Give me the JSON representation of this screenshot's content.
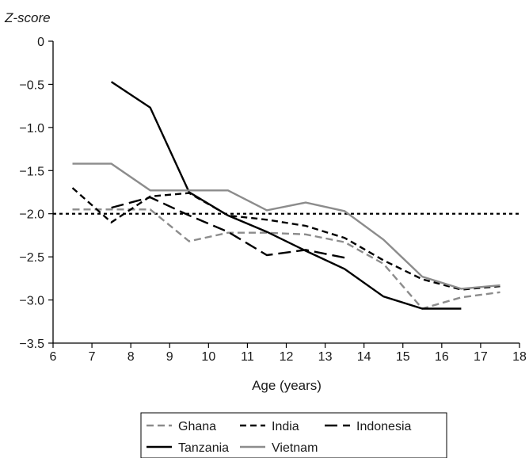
{
  "chart_data": {
    "type": "line",
    "ylabel": "Z-score",
    "xlabel": "Age (years)",
    "xlim": [
      6,
      18
    ],
    "ylim": [
      -3.5,
      0
    ],
    "xticks": [
      "6",
      "7",
      "8",
      "9",
      "10",
      "11",
      "12",
      "13",
      "14",
      "15",
      "16",
      "17",
      "18"
    ],
    "yticks": [
      "0",
      "−0.5",
      "−1.0",
      "−1.5",
      "−2.0",
      "−2.5",
      "−3.0",
      "−3.5"
    ],
    "reference_line": -2.0,
    "grid": false,
    "legend_position": "bottom",
    "series": [
      {
        "name": "Ghana",
        "color": "#8c8c8c",
        "dash": "medium-dash",
        "points": [
          [
            6.5,
            -1.95
          ],
          [
            7.5,
            -1.95
          ],
          [
            8.5,
            -1.95
          ],
          [
            9.5,
            -2.32
          ],
          [
            10.5,
            -2.22
          ],
          [
            11.5,
            -2.22
          ],
          [
            12.5,
            -2.24
          ],
          [
            13.5,
            -2.33
          ],
          [
            14.5,
            -2.58
          ],
          [
            15.5,
            -3.1
          ],
          [
            16.5,
            -2.97
          ],
          [
            17.5,
            -2.91
          ]
        ]
      },
      {
        "name": "India",
        "color": "#000000",
        "dash": "short-dash",
        "points": [
          [
            6.5,
            -1.7
          ],
          [
            7.5,
            -2.1
          ],
          [
            8.5,
            -1.8
          ],
          [
            9.5,
            -1.76
          ],
          [
            10.5,
            -2.02
          ],
          [
            11.5,
            -2.07
          ],
          [
            12.5,
            -2.14
          ],
          [
            13.5,
            -2.28
          ],
          [
            14.5,
            -2.54
          ],
          [
            15.5,
            -2.76
          ],
          [
            16.5,
            -2.88
          ],
          [
            17.5,
            -2.84
          ]
        ]
      },
      {
        "name": "Indonesia",
        "color": "#000000",
        "dash": "long-dash",
        "points": [
          [
            7.5,
            -1.93
          ],
          [
            8.5,
            -1.81
          ],
          [
            9.5,
            -2.02
          ],
          [
            10.5,
            -2.21
          ],
          [
            11.5,
            -2.48
          ],
          [
            12.5,
            -2.42
          ],
          [
            13.5,
            -2.51
          ]
        ]
      },
      {
        "name": "Tanzania",
        "color": "#000000",
        "dash": "solid",
        "points": [
          [
            7.5,
            -0.47
          ],
          [
            8.5,
            -0.77
          ],
          [
            9.5,
            -1.75
          ],
          [
            10.5,
            -2.02
          ],
          [
            11.5,
            -2.21
          ],
          [
            12.5,
            -2.43
          ],
          [
            13.5,
            -2.64
          ],
          [
            14.5,
            -2.96
          ],
          [
            15.5,
            -3.1
          ],
          [
            16.5,
            -3.1
          ]
        ]
      },
      {
        "name": "Vietnam",
        "color": "#8c8c8c",
        "dash": "solid",
        "points": [
          [
            6.5,
            -1.42
          ],
          [
            7.5,
            -1.42
          ],
          [
            8.5,
            -1.73
          ],
          [
            9.5,
            -1.73
          ],
          [
            10.5,
            -1.73
          ],
          [
            11.5,
            -1.96
          ],
          [
            12.5,
            -1.87
          ],
          [
            13.5,
            -1.97
          ],
          [
            14.5,
            -2.3
          ],
          [
            15.5,
            -2.73
          ],
          [
            16.5,
            -2.87
          ],
          [
            17.5,
            -2.83
          ]
        ]
      }
    ]
  }
}
